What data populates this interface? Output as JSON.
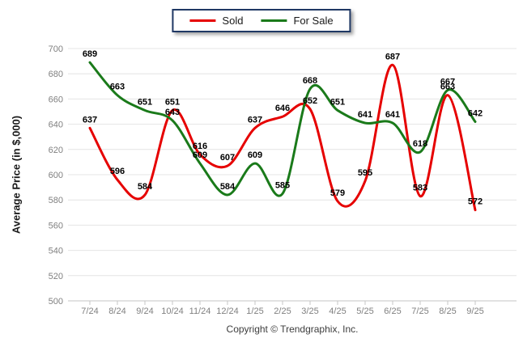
{
  "chart_data": {
    "type": "line",
    "title": "",
    "xlabel": "",
    "ylabel": "Average Price (in $,000)",
    "categories": [
      "7/24",
      "8/24",
      "9/24",
      "10/24",
      "11/24",
      "12/24",
      "1/25",
      "2/25",
      "3/25",
      "4/25",
      "5/25",
      "6/25",
      "7/25",
      "8/25",
      "9/25"
    ],
    "series": [
      {
        "name": "Sold",
        "color": "#e60000",
        "values": [
          637,
          596,
          584,
          651,
          616,
          607,
          637,
          646,
          652,
          579,
          595,
          687,
          583,
          663,
          572
        ]
      },
      {
        "name": "For Sale",
        "color": "#1a7a1a",
        "values": [
          689,
          663,
          651,
          643,
          609,
          584,
          609,
          585,
          668,
          651,
          641,
          641,
          618,
          667,
          642
        ]
      }
    ],
    "ylim": [
      500,
      700
    ],
    "ytick_step": 20,
    "grid": "horizontal",
    "legend_position": "top-center",
    "data_labels": "on"
  },
  "footer": {
    "copyright": "Copyright © Trendgraphix, Inc."
  }
}
